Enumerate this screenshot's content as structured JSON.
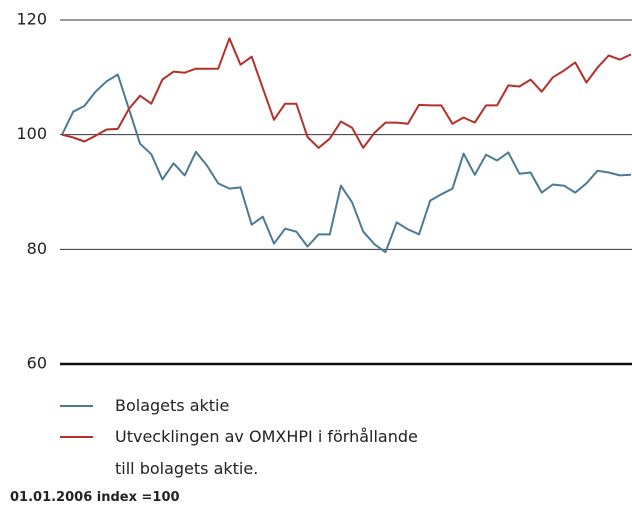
{
  "chart_data": {
    "type": "line",
    "ylim": [
      60,
      120
    ],
    "yticks": [
      60,
      80,
      100,
      120
    ],
    "grid": true,
    "series": [
      {
        "name": "Bolagets aktie",
        "color": "#4a7a96",
        "values": [
          100,
          104,
          105,
          107.5,
          109.3,
          110.5,
          104.5,
          98.4,
          96.6,
          92.2,
          95,
          92.9,
          97,
          94.6,
          91.5,
          90.6,
          90.8,
          84.3,
          85.7,
          81,
          83.6,
          83.1,
          80.5,
          82.6,
          82.6,
          91.1,
          88.2,
          83.1,
          80.9,
          79.5,
          84.7,
          83.5,
          82.6,
          88.5,
          89.6,
          90.6,
          96.7,
          93,
          96.5,
          95.5,
          96.9,
          93.2,
          93.4,
          89.9,
          91.3,
          91.1,
          89.9,
          91.5,
          93.7,
          93.4,
          92.9,
          93
        ]
      },
      {
        "name": "Utvecklingen av OMXHPI i förhållande till bolagets aktie.",
        "color": "#b5302a",
        "values": [
          100,
          99.5,
          98.8,
          99.8,
          100.9,
          101,
          104.5,
          106.8,
          105.4,
          109.6,
          111,
          110.8,
          111.5,
          111.5,
          111.5,
          116.8,
          112.2,
          113.6,
          108.1,
          102.6,
          105.4,
          105.4,
          99.6,
          97.7,
          99.3,
          102.3,
          101.2,
          97.7,
          100.3,
          102.1,
          102.1,
          101.9,
          105.2,
          105.1,
          105.1,
          101.9,
          103,
          102.1,
          105.1,
          105.1,
          108.6,
          108.4,
          109.6,
          107.5,
          110,
          111.2,
          112.6,
          109.1,
          111.7,
          113.8,
          113.1,
          114
        ]
      }
    ],
    "note": "01.01.2006 index =100"
  }
}
